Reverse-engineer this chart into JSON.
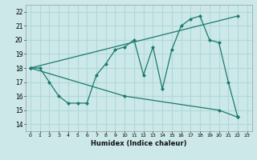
{
  "xlabel": "Humidex (Indice chaleur)",
  "xlim": [
    -0.5,
    23.5
  ],
  "ylim": [
    13.5,
    22.5
  ],
  "xticks": [
    0,
    1,
    2,
    3,
    4,
    5,
    6,
    7,
    8,
    9,
    10,
    11,
    12,
    13,
    14,
    15,
    16,
    17,
    18,
    19,
    20,
    21,
    22,
    23
  ],
  "yticks": [
    14,
    15,
    16,
    17,
    18,
    19,
    20,
    21,
    22
  ],
  "bg_color": "#cce8e8",
  "line_color": "#1a7a6e",
  "grid_color": "#b0d8d8",
  "line1_x": [
    0,
    1,
    2,
    3,
    4,
    5,
    6,
    7,
    8,
    9,
    10,
    11,
    12,
    13,
    14,
    15,
    16,
    17,
    18,
    19,
    20,
    21,
    22
  ],
  "line1_y": [
    18.0,
    18.0,
    17.0,
    16.0,
    15.5,
    15.5,
    15.5,
    17.5,
    18.3,
    19.3,
    19.5,
    20.0,
    17.5,
    19.5,
    16.5,
    19.3,
    21.0,
    21.5,
    21.7,
    20.0,
    19.8,
    17.0,
    14.5
  ],
  "line2_x": [
    0,
    22
  ],
  "line2_y": [
    18.0,
    21.7
  ],
  "line3_x": [
    0,
    10,
    20,
    22
  ],
  "line3_y": [
    18.0,
    16.0,
    15.0,
    14.5
  ]
}
